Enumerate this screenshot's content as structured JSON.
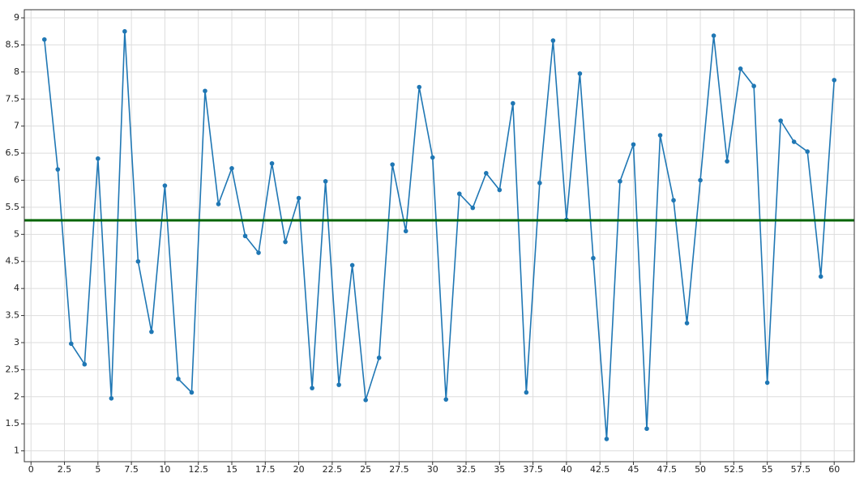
{
  "chart_data": {
    "type": "line",
    "x": [
      1,
      2,
      3,
      4,
      5,
      6,
      7,
      8,
      9,
      10,
      11,
      12,
      13,
      14,
      15,
      16,
      17,
      18,
      19,
      20,
      21,
      22,
      23,
      24,
      25,
      26,
      27,
      28,
      29,
      30,
      31,
      32,
      33,
      34,
      35,
      36,
      37,
      38,
      39,
      40,
      41,
      42,
      43,
      44,
      45,
      46,
      47,
      48,
      49,
      50,
      51,
      52,
      53,
      54,
      55,
      56,
      57,
      58,
      59,
      60
    ],
    "series": [
      {
        "color": "#1f77b4",
        "values": [
          8.6,
          6.2,
          2.98,
          2.6,
          6.4,
          1.97,
          8.75,
          4.5,
          3.2,
          5.9,
          2.33,
          2.08,
          7.65,
          5.56,
          6.22,
          4.97,
          4.66,
          6.31,
          4.86,
          5.67,
          2.16,
          5.98,
          2.22,
          4.43,
          1.94,
          2.72,
          6.29,
          5.06,
          7.72,
          6.42,
          1.95,
          5.75,
          5.49,
          6.13,
          5.82,
          7.42,
          2.08,
          5.95,
          8.58,
          5.27,
          7.97,
          4.56,
          1.22,
          5.98,
          6.66,
          1.41,
          6.83,
          5.63,
          3.36,
          6.0,
          8.67,
          6.35,
          8.06,
          7.74,
          2.26,
          7.1,
          6.71,
          6.53,
          4.22,
          7.85
        ]
      }
    ],
    "hline": {
      "value": 5.26,
      "color": "#006400"
    },
    "xlim": [
      -0.5,
      61.5
    ],
    "ylim": [
      0.8,
      9.15
    ],
    "xticks": [
      0,
      2.5,
      5,
      7.5,
      10,
      12.5,
      15,
      17.5,
      20,
      22.5,
      25,
      27.5,
      30,
      32.5,
      35,
      37.5,
      40,
      42.5,
      45,
      47.5,
      50,
      52.5,
      55,
      57.5,
      60
    ],
    "yticks": [
      1,
      1.5,
      2,
      2.5,
      3,
      3.5,
      4,
      4.5,
      5,
      5.5,
      6,
      6.5,
      7,
      7.5,
      8,
      8.5,
      9
    ],
    "grid": true
  }
}
